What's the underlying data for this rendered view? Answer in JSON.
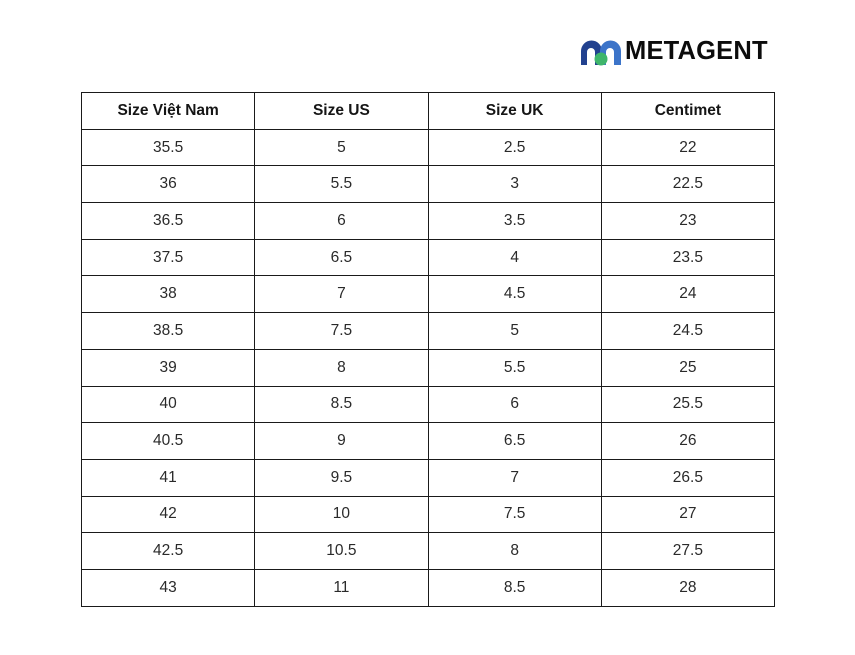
{
  "brand": {
    "name": "METAGENT",
    "logo_icon": "metagent-logo-icon",
    "colors": {
      "dark_blue": "#22418f",
      "mid_blue": "#3c74c9",
      "green": "#3fb56b",
      "text": "#0c0c0c"
    }
  },
  "table": {
    "headers": [
      "Size Việt Nam",
      "Size US",
      "Size UK",
      "Centimet"
    ],
    "rows": [
      [
        "35.5",
        "5",
        "2.5",
        "22"
      ],
      [
        "36",
        "5.5",
        "3",
        "22.5"
      ],
      [
        "36.5",
        "6",
        "3.5",
        "23"
      ],
      [
        "37.5",
        "6.5",
        "4",
        "23.5"
      ],
      [
        "38",
        "7",
        "4.5",
        "24"
      ],
      [
        "38.5",
        "7.5",
        "5",
        "24.5"
      ],
      [
        "39",
        "8",
        "5.5",
        "25"
      ],
      [
        "40",
        "8.5",
        "6",
        "25.5"
      ],
      [
        "40.5",
        "9",
        "6.5",
        "26"
      ],
      [
        "41",
        "9.5",
        "7",
        "26.5"
      ],
      [
        "42",
        "10",
        "7.5",
        "27"
      ],
      [
        "42.5",
        "10.5",
        "8",
        "27.5"
      ],
      [
        "43",
        "11",
        "8.5",
        "28"
      ]
    ]
  }
}
